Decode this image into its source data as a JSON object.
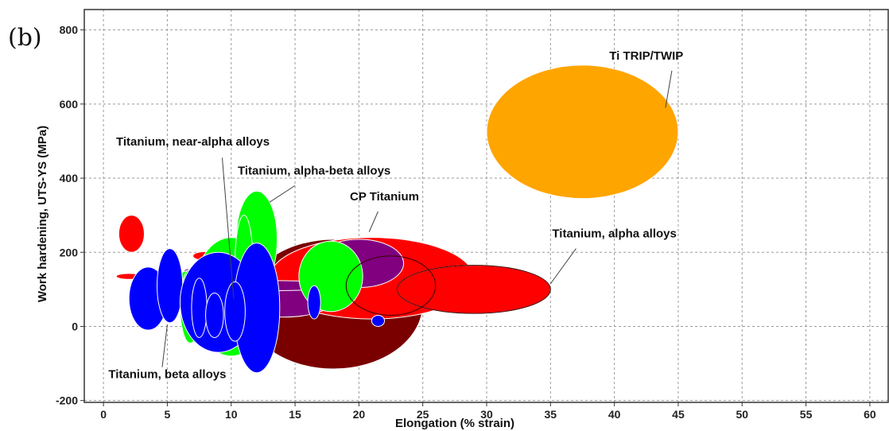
{
  "panel_label": "(b)",
  "chart_data": {
    "type": "scatter",
    "subtype": "bubble-ellipse property chart",
    "xlabel": "Elongation (% strain)",
    "ylabel": "Work hardening, UTS-YS (MPa)",
    "xlim": [
      -1.5,
      61.5
    ],
    "ylim": [
      -205,
      855
    ],
    "x_ticks": [
      0,
      5,
      10,
      15,
      20,
      25,
      30,
      35,
      40,
      45,
      50,
      55,
      60
    ],
    "y_ticks": [
      -200,
      0,
      200,
      400,
      600,
      800
    ],
    "grid": true,
    "grid_style": "dashed",
    "colors": {
      "cp_titanium": "#7a0000",
      "alpha_alloys": "#ff0000",
      "near_alpha_alloys": "#800080",
      "alpha_beta_alloys": "#00ff00",
      "beta_alloys": "#0000ff",
      "trip_twip": "#ffa500"
    },
    "series": [
      {
        "key": "trip_twip",
        "name": "Ti TRIP/TWIP",
        "ellipses": [
          {
            "cx": 37.5,
            "cy": 525,
            "rx": 7.5,
            "ry": 180
          }
        ]
      },
      {
        "key": "cp_titanium",
        "name": "CP Titanium",
        "ellipses": [
          {
            "cx": 18,
            "cy": 60,
            "rx": 7,
            "ry": 175
          },
          {
            "cx": 22.5,
            "cy": 110,
            "rx": 3.5,
            "ry": 80
          }
        ]
      },
      {
        "key": "alpha_alloys",
        "name": "Titanium, alpha alloys",
        "ellipses": [
          {
            "cx": 21,
            "cy": 130,
            "rx": 8,
            "ry": 110
          },
          {
            "cx": 29,
            "cy": 100,
            "rx": 6,
            "ry": 65
          },
          {
            "cx": 2.2,
            "cy": 250,
            "rx": 1,
            "ry": 50
          },
          {
            "cx": 2,
            "cy": 135,
            "rx": 1,
            "ry": 8
          },
          {
            "cx": 8,
            "cy": 190,
            "rx": 1,
            "ry": 12
          },
          {
            "cx": 11,
            "cy": 65,
            "rx": 0.8,
            "ry": 55
          },
          {
            "cx": 8.2,
            "cy": 10,
            "rx": 1.1,
            "ry": 45
          }
        ]
      },
      {
        "key": "near_alpha_alloys",
        "name": "Titanium, near-alpha alloys",
        "ellipses": [
          {
            "cx": 14,
            "cy": 70,
            "rx": 4,
            "ry": 45
          },
          {
            "cx": 20,
            "cy": 170,
            "rx": 3.5,
            "ry": 65
          },
          {
            "cx": 11.5,
            "cy": 110,
            "rx": 8.5,
            "ry": 14
          },
          {
            "cx": 7,
            "cy": 115,
            "rx": 1.5,
            "ry": 9
          },
          {
            "cx": 7.5,
            "cy": 150,
            "rx": 1.2,
            "ry": 9
          }
        ]
      },
      {
        "key": "alpha_beta_alloys",
        "name": "Titanium, alpha-beta alloys",
        "ellipses": [
          {
            "cx": 12,
            "cy": 235,
            "rx": 1.6,
            "ry": 130
          },
          {
            "cx": 10,
            "cy": 80,
            "rx": 3,
            "ry": 160
          },
          {
            "cx": 8.5,
            "cy": 105,
            "rx": 3.5,
            "ry": 55
          },
          {
            "cx": 17.8,
            "cy": 135,
            "rx": 2.5,
            "ry": 95
          },
          {
            "cx": 6.8,
            "cy": 55,
            "rx": 0.8,
            "ry": 100
          },
          {
            "cx": 11,
            "cy": 170,
            "rx": 0.7,
            "ry": 130
          }
        ]
      },
      {
        "key": "beta_alloys",
        "name": "Titanium, beta alloys",
        "ellipses": [
          {
            "cx": 3.5,
            "cy": 75,
            "rx": 1.5,
            "ry": 85
          },
          {
            "cx": 5.2,
            "cy": 110,
            "rx": 1,
            "ry": 100
          },
          {
            "cx": 9,
            "cy": 65,
            "rx": 3,
            "ry": 135
          },
          {
            "cx": 12,
            "cy": 50,
            "rx": 1.8,
            "ry": 175
          },
          {
            "cx": 10.3,
            "cy": 40,
            "rx": 0.8,
            "ry": 80
          },
          {
            "cx": 16.5,
            "cy": 65,
            "rx": 0.5,
            "ry": 45
          },
          {
            "cx": 21.5,
            "cy": 15,
            "rx": 0.5,
            "ry": 15
          },
          {
            "cx": 7.5,
            "cy": 50,
            "rx": 0.6,
            "ry": 80
          },
          {
            "cx": 8.7,
            "cy": 30,
            "rx": 0.7,
            "ry": 60
          }
        ]
      }
    ],
    "annotations": [
      {
        "text": "Ti TRIP/TWIP",
        "tx": 42.5,
        "ty": 720,
        "ax": 44.5,
        "ay": 690,
        "bx": 44,
        "by": 590
      },
      {
        "text": "Titanium, near-alpha alloys",
        "tx": 7,
        "ty": 488,
        "ax": 9.3,
        "ay": 455,
        "bx": 10.2,
        "by": 75
      },
      {
        "text": "Titanium, alpha-beta alloys",
        "tx": 16.5,
        "ty": 410,
        "ax": 15,
        "ay": 380,
        "bx": 13,
        "by": 335
      },
      {
        "text": "CP Titanium",
        "tx": 22,
        "ty": 340,
        "ax": 21.5,
        "ay": 310,
        "bx": 20.8,
        "by": 255
      },
      {
        "text": "Titanium, alpha alloys",
        "tx": 40,
        "ty": 240,
        "ax": 37,
        "ay": 210,
        "bx": 35,
        "by": 115
      },
      {
        "text": "Titanium, beta alloys",
        "tx": 5,
        "ty": -140,
        "ax": 4.6,
        "ay": -110,
        "bx": 5,
        "by": 5
      }
    ]
  }
}
